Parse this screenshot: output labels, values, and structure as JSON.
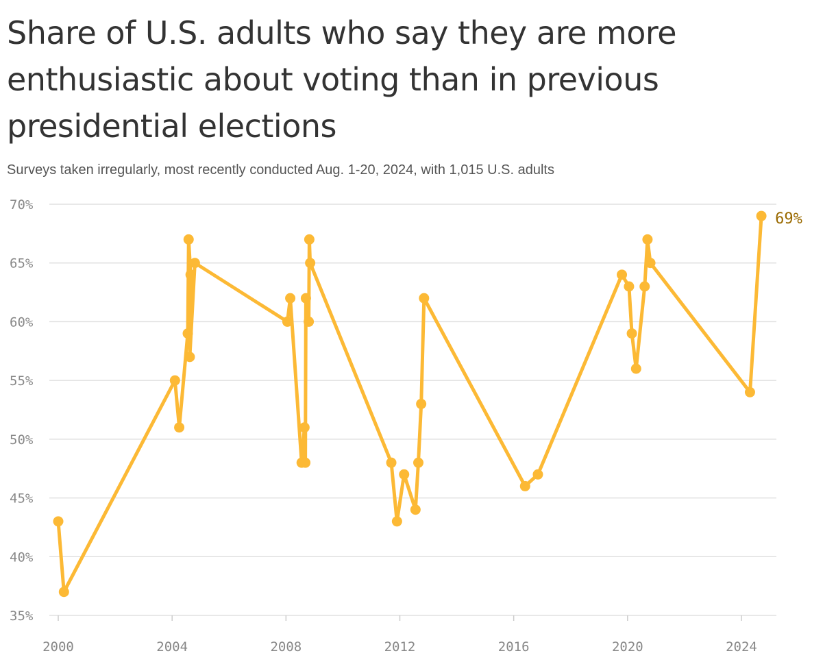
{
  "title": "Share of U.S. adults who say they are more enthusiastic about voting than in previous presidential elections",
  "subtitle": "Surveys taken irregularly, most recently conducted Aug. 1-20, 2024, with 1,015 U.S. adults",
  "colors": {
    "line": "#fcb935",
    "end_label": "#9a6a00",
    "grid": "#e0e0e0",
    "tick": "#888888"
  },
  "chart_data": {
    "type": "line",
    "x_unit": "year",
    "y_unit": "percent",
    "ylim": [
      35,
      70
    ],
    "xlim": [
      1999.8,
      2025
    ],
    "y_ticks": [
      35,
      40,
      45,
      50,
      55,
      60,
      65,
      70
    ],
    "y_tick_labels": [
      "35%",
      "40%",
      "45%",
      "50%",
      "55%",
      "60%",
      "65%",
      "70%"
    ],
    "x_ticks": [
      2000,
      2004,
      2008,
      2012,
      2016,
      2020,
      2024
    ],
    "x_tick_labels": [
      "2000",
      "2004",
      "2008",
      "2012",
      "2016",
      "2020",
      "2024"
    ],
    "grid": true,
    "end_label": "69%",
    "series": [
      {
        "points": [
          [
            2000.0,
            43
          ],
          [
            2000.2,
            37
          ],
          [
            2004.1,
            55
          ],
          [
            2004.25,
            51
          ],
          [
            2004.55,
            59
          ],
          [
            2004.58,
            67
          ],
          [
            2004.65,
            64
          ],
          [
            2004.62,
            57
          ],
          [
            2004.8,
            65
          ],
          [
            2008.05,
            60
          ],
          [
            2008.15,
            62
          ],
          [
            2008.55,
            48
          ],
          [
            2008.65,
            51
          ],
          [
            2008.68,
            48
          ],
          [
            2008.7,
            62
          ],
          [
            2008.8,
            60
          ],
          [
            2008.82,
            67
          ],
          [
            2008.85,
            65
          ],
          [
            2011.7,
            48
          ],
          [
            2011.9,
            43
          ],
          [
            2012.15,
            47
          ],
          [
            2012.55,
            44
          ],
          [
            2012.65,
            48
          ],
          [
            2012.75,
            53
          ],
          [
            2012.85,
            62
          ],
          [
            2016.4,
            46
          ],
          [
            2016.85,
            47
          ],
          [
            2019.8,
            64
          ],
          [
            2020.05,
            63
          ],
          [
            2020.15,
            59
          ],
          [
            2020.3,
            56
          ],
          [
            2020.6,
            63
          ],
          [
            2020.7,
            67
          ],
          [
            2020.8,
            65
          ],
          [
            2024.3,
            54
          ],
          [
            2024.7,
            69
          ]
        ]
      }
    ]
  }
}
